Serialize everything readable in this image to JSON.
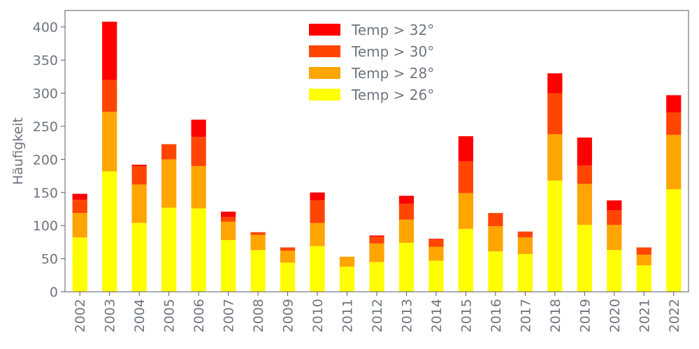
{
  "chart_data": {
    "type": "bar",
    "stacked": true,
    "ylabel": "Häufigkeit",
    "xlabel": "",
    "ylim": [
      0,
      425
    ],
    "yticks": [
      0,
      50,
      100,
      150,
      200,
      250,
      300,
      350,
      400
    ],
    "grid": false,
    "legend_position": "top-center",
    "categories": [
      "2002",
      "2003",
      "2004",
      "2005",
      "2006",
      "2007",
      "2008",
      "2009",
      "2010",
      "2011",
      "2012",
      "2013",
      "2014",
      "2015",
      "2016",
      "2017",
      "2018",
      "2019",
      "2020",
      "2021",
      "2022"
    ],
    "series": [
      {
        "name": "Temp > 26°",
        "color": "#ffff00",
        "values": [
          82,
          182,
          104,
          127,
          126,
          78,
          63,
          44,
          69,
          38,
          45,
          74,
          47,
          95,
          61,
          57,
          168,
          101,
          63,
          40,
          155
        ]
      },
      {
        "name": "Temp > 28°",
        "color": "#ffa500",
        "values": [
          37,
          90,
          58,
          73,
          64,
          28,
          23,
          18,
          35,
          15,
          28,
          35,
          21,
          54,
          38,
          25,
          70,
          62,
          38,
          16,
          82
        ]
      },
      {
        "name": "Temp > 30°",
        "color": "#ff4500",
        "values": [
          20,
          48,
          28,
          23,
          44,
          7,
          4,
          5,
          34,
          0,
          10,
          24,
          11,
          48,
          20,
          9,
          62,
          28,
          22,
          11,
          34
        ]
      },
      {
        "name": "Temp > 32°",
        "color": "#ff0000",
        "values": [
          9,
          88,
          2,
          0,
          26,
          8,
          0,
          0,
          12,
          0,
          2,
          12,
          1,
          38,
          0,
          0,
          30,
          42,
          15,
          0,
          26
        ]
      }
    ],
    "legend_order": [
      "Temp > 32°",
      "Temp > 30°",
      "Temp > 28°",
      "Temp > 26°"
    ]
  }
}
